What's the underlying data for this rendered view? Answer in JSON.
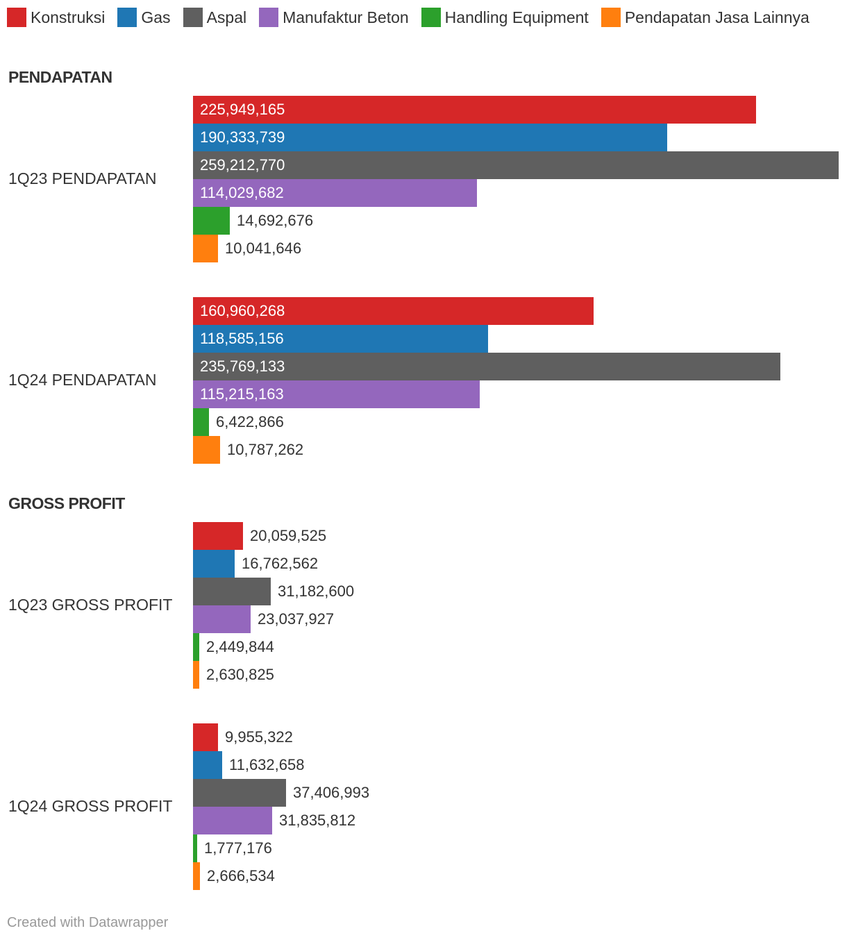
{
  "chart_data": {
    "type": "bar",
    "orientation": "horizontal",
    "legend": [
      {
        "name": "Konstruksi",
        "color": "#d62728"
      },
      {
        "name": "Gas",
        "color": "#1f77b4"
      },
      {
        "name": "Aspal",
        "color": "#5f5f5f"
      },
      {
        "name": "Manufaktur Beton",
        "color": "#9467bd"
      },
      {
        "name": "Handling Equipment",
        "color": "#2ca02c"
      },
      {
        "name": "Pendapatan Jasa Lainnya",
        "color": "#ff7f0e"
      }
    ],
    "xlim": [
      0,
      259212770
    ],
    "sections": [
      {
        "title": "PENDAPATAN",
        "groups": [
          {
            "label": "1Q23 PENDAPATAN",
            "values": [
              225949165,
              190333739,
              259212770,
              114029682,
              14692676,
              10041646
            ],
            "value_labels": [
              "225,949,165",
              "190,333,739",
              "259,212,770",
              "114,029,682",
              "14,692,676",
              "10,041,646"
            ]
          },
          {
            "label": "1Q24 PENDAPATAN",
            "values": [
              160960268,
              118585156,
              235769133,
              115215163,
              6422866,
              10787262
            ],
            "value_labels": [
              "160,960,268",
              "118,585,156",
              "235,769,133",
              "115,215,163",
              "6,422,866",
              "10,787,262"
            ]
          }
        ]
      },
      {
        "title": "GROSS PROFIT",
        "groups": [
          {
            "label": "1Q23 GROSS PROFIT",
            "values": [
              20059525,
              16762562,
              31182600,
              23037927,
              2449844,
              2630825
            ],
            "value_labels": [
              "20,059,525",
              "16,762,562",
              "31,182,600",
              "23,037,927",
              "2,449,844",
              "2,630,825"
            ]
          },
          {
            "label": "1Q24 GROSS PROFIT",
            "values": [
              9955322,
              11632658,
              37406993,
              31835812,
              1777176,
              2666534
            ],
            "value_labels": [
              "9,955,322",
              "11,632,658",
              "37,406,993",
              "31,835,812",
              "1,777,176",
              "2,666,534"
            ]
          }
        ]
      }
    ]
  },
  "footer": {
    "credit": "Created with Datawrapper"
  }
}
